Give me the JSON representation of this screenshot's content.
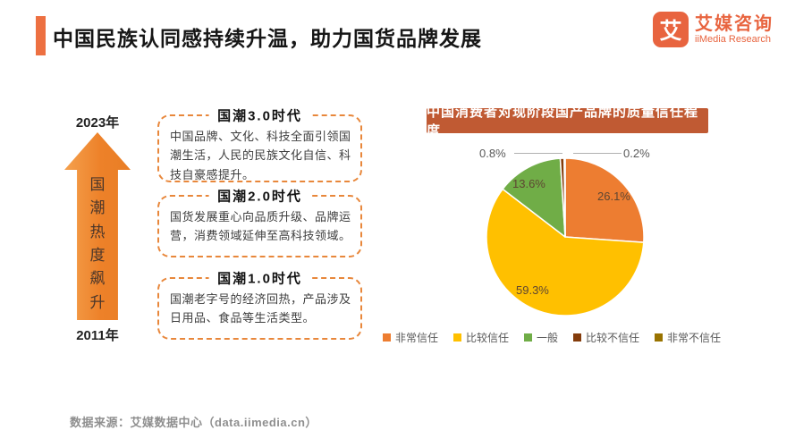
{
  "header": {
    "title": "中国民族认同感持续升温，助力国货品牌发展",
    "logo": {
      "mark": "艾",
      "name_cn": "艾媒咨询",
      "name_en": "iiMedia Research"
    }
  },
  "timeline": {
    "year_top": "2023年",
    "year_bottom": "2011年",
    "arrow_label": "国潮热度飙升",
    "eras": [
      {
        "title": "国潮3.0时代",
        "desc": "中国品牌、文化、科技全面引领国潮生活，人民的民族文化自信、科技自豪感提升。"
      },
      {
        "title": "国潮2.0时代",
        "desc": "国货发展重心向品质升级、品牌运营，消费领域延伸至高科技领域。"
      },
      {
        "title": "国潮1.0时代",
        "desc": "国潮老字号的经济回热，产品涉及日用品、食品等生活类型。"
      }
    ]
  },
  "chart_data": {
    "type": "pie",
    "title": "中国消费者对现阶段国产品牌的质量信任程度",
    "start_angle_deg": 0,
    "direction": "clockwise",
    "legend_position": "bottom",
    "slices": [
      {
        "label": "非常信任",
        "value": 26.1,
        "display": "26.1%",
        "color": "#ED7D31"
      },
      {
        "label": "比较信任",
        "value": 59.3,
        "display": "59.3%",
        "color": "#FFC000"
      },
      {
        "label": "一般",
        "value": 13.6,
        "display": "13.6%",
        "color": "#70AD47"
      },
      {
        "label": "比较不信任",
        "value": 0.8,
        "display": "0.8%",
        "color": "#843C0C"
      },
      {
        "label": "非常不信任",
        "value": 0.2,
        "display": "0.2%",
        "color": "#997300"
      }
    ]
  },
  "footer": {
    "source": "数据来源：艾媒数据中心（data.iimedia.cn）"
  }
}
